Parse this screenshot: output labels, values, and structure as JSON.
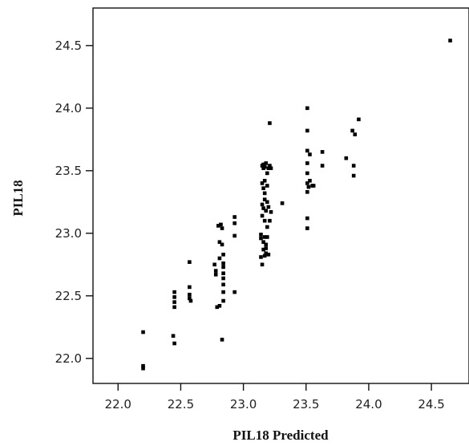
{
  "chart_data": {
    "type": "scatter",
    "title": "",
    "xlabel": "PIL18    Predicted",
    "ylabel": "PIL18",
    "xlim": [
      21.8,
      24.8
    ],
    "ylim": [
      21.8,
      24.8
    ],
    "xticks": [
      22.0,
      22.5,
      23.0,
      23.5,
      24.0,
      24.5
    ],
    "yticks": [
      22.0,
      22.5,
      23.0,
      23.5,
      24.0,
      24.5
    ],
    "tick_labels_x": [
      "22.0",
      "22.5",
      "23.0",
      "23.5",
      "24.0",
      "24.5"
    ],
    "tick_labels_y": [
      "22.0",
      "22.5",
      "23.0",
      "23.5",
      "24.0",
      "24.5"
    ],
    "grid": false,
    "legend": "none",
    "marker_color": "#000000",
    "points": [
      [
        22.2,
        22.21
      ],
      [
        22.2,
        21.94
      ],
      [
        22.2,
        21.92
      ],
      [
        22.44,
        22.18
      ],
      [
        22.45,
        22.12
      ],
      [
        22.45,
        22.53
      ],
      [
        22.45,
        22.49
      ],
      [
        22.45,
        22.45
      ],
      [
        22.45,
        22.41
      ],
      [
        22.57,
        22.77
      ],
      [
        22.57,
        22.57
      ],
      [
        22.57,
        22.51
      ],
      [
        22.57,
        22.48
      ],
      [
        22.58,
        22.46
      ],
      [
        22.77,
        22.75
      ],
      [
        22.78,
        22.7
      ],
      [
        22.78,
        22.67
      ],
      [
        22.79,
        22.41
      ],
      [
        22.8,
        23.06
      ],
      [
        22.81,
        22.93
      ],
      [
        22.81,
        22.8
      ],
      [
        22.81,
        22.42
      ],
      [
        22.82,
        23.07
      ],
      [
        22.83,
        22.15
      ],
      [
        22.83,
        23.04
      ],
      [
        22.83,
        22.91
      ],
      [
        22.84,
        22.83
      ],
      [
        22.84,
        22.76
      ],
      [
        22.84,
        22.73
      ],
      [
        22.84,
        22.68
      ],
      [
        22.84,
        22.64
      ],
      [
        22.84,
        22.59
      ],
      [
        22.84,
        22.53
      ],
      [
        22.84,
        22.46
      ],
      [
        22.93,
        23.13
      ],
      [
        22.93,
        23.08
      ],
      [
        22.93,
        22.98
      ],
      [
        22.93,
        22.53
      ],
      [
        23.14,
        22.99
      ],
      [
        23.14,
        22.96
      ],
      [
        23.14,
        22.81
      ],
      [
        23.15,
        23.54
      ],
      [
        23.15,
        23.4
      ],
      [
        23.15,
        23.23
      ],
      [
        23.15,
        23.14
      ],
      [
        23.15,
        22.75
      ],
      [
        23.16,
        23.55
      ],
      [
        23.16,
        23.52
      ],
      [
        23.16,
        23.36
      ],
      [
        23.16,
        23.2
      ],
      [
        23.16,
        22.93
      ],
      [
        23.16,
        22.87
      ],
      [
        23.17,
        23.53
      ],
      [
        23.17,
        23.42
      ],
      [
        23.17,
        23.32
      ],
      [
        23.17,
        23.27
      ],
      [
        23.17,
        23.1
      ],
      [
        23.17,
        22.97
      ],
      [
        23.17,
        22.82
      ],
      [
        23.18,
        23.56
      ],
      [
        23.18,
        23.18
      ],
      [
        23.18,
        22.88
      ],
      [
        23.18,
        22.84
      ],
      [
        23.18,
        22.91
      ],
      [
        23.19,
        23.48
      ],
      [
        23.19,
        23.38
      ],
      [
        23.19,
        23.25
      ],
      [
        23.19,
        23.05
      ],
      [
        23.19,
        22.97
      ],
      [
        23.2,
        23.52
      ],
      [
        23.2,
        23.21
      ],
      [
        23.2,
        22.83
      ],
      [
        23.21,
        23.88
      ],
      [
        23.21,
        23.54
      ],
      [
        23.21,
        23.1
      ],
      [
        23.22,
        23.52
      ],
      [
        23.22,
        23.17
      ],
      [
        23.31,
        23.24
      ],
      [
        23.51,
        24.0
      ],
      [
        23.51,
        23.82
      ],
      [
        23.51,
        23.66
      ],
      [
        23.51,
        23.56
      ],
      [
        23.51,
        23.48
      ],
      [
        23.51,
        23.4
      ],
      [
        23.51,
        23.33
      ],
      [
        23.51,
        23.12
      ],
      [
        23.51,
        23.04
      ],
      [
        23.52,
        23.37
      ],
      [
        23.53,
        23.63
      ],
      [
        23.53,
        23.42
      ],
      [
        23.55,
        23.38
      ],
      [
        23.56,
        23.38
      ],
      [
        23.63,
        23.65
      ],
      [
        23.63,
        23.54
      ],
      [
        23.82,
        23.6
      ],
      [
        23.87,
        23.82
      ],
      [
        23.88,
        23.54
      ],
      [
        23.88,
        23.46
      ],
      [
        23.89,
        23.79
      ],
      [
        23.92,
        23.91
      ],
      [
        24.65,
        24.54
      ]
    ]
  }
}
